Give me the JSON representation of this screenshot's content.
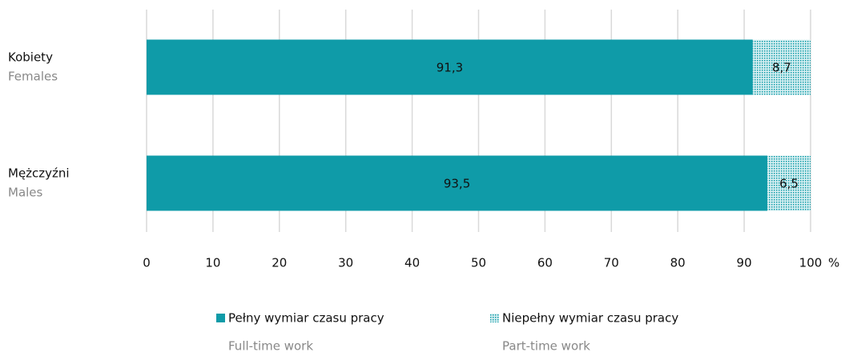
{
  "chart_data": {
    "type": "stacked_barh",
    "categories": [
      "Kobiety",
      "Mężczyźni"
    ],
    "categories_en": [
      "Females",
      "Males"
    ],
    "series": [
      {
        "name": "Pełny wymiar czasu pracy",
        "name_en": "Full-time work",
        "color": "#0f9ba8",
        "values": [
          91.3,
          93.5
        ],
        "value_labels": [
          "91,3",
          "93,5"
        ]
      },
      {
        "name": "Niepełny wymiar czasu pracy",
        "name_en": "Part-time work",
        "color": "#0f9ba8",
        "pattern": true,
        "values": [
          8.7,
          6.5
        ],
        "value_labels": [
          "8,7",
          "6,5"
        ]
      }
    ],
    "xlim": [
      0,
      100
    ],
    "xticks": [
      0,
      10,
      20,
      30,
      40,
      50,
      60,
      70,
      80,
      90,
      100
    ],
    "x_unit": "%",
    "grid": true
  }
}
